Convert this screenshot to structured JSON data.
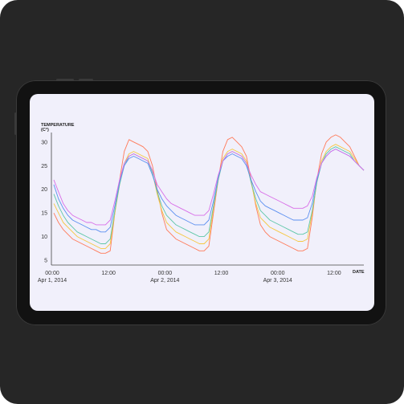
{
  "chart_data": {
    "type": "line",
    "ylabel": "TEMPERATURE",
    "ylabel_unit": "(C°)",
    "xlabel": "DATE",
    "ylim": [
      4,
      32
    ],
    "yticks": [
      5,
      10,
      15,
      20,
      25,
      30
    ],
    "xlim": [
      0,
      66
    ],
    "xticks": [
      {
        "x": 0,
        "line1": "00:00",
        "line2": "Apr 1, 2014"
      },
      {
        "x": 12,
        "line1": "12:00",
        "line2": ""
      },
      {
        "x": 24,
        "line1": "00:00",
        "line2": "Apr 2, 2014"
      },
      {
        "x": 36,
        "line1": "12:00",
        "line2": ""
      },
      {
        "x": 48,
        "line1": "00:00",
        "line2": "Apr 3, 2014"
      },
      {
        "x": 60,
        "line1": "12:00",
        "line2": ""
      }
    ],
    "legend": "none",
    "grid": false,
    "series": [
      {
        "color": "#ff7a59",
        "x": [
          0,
          1,
          2,
          3,
          4,
          5,
          6,
          7,
          8,
          9,
          10,
          11,
          12,
          13,
          14,
          15,
          16,
          17,
          18,
          19,
          20,
          21,
          22,
          23,
          24,
          25,
          26,
          27,
          28,
          29,
          30,
          31,
          32,
          33,
          34,
          35,
          36,
          37,
          38,
          39,
          40,
          41,
          42,
          43,
          44,
          45,
          46,
          47,
          48,
          49,
          50,
          51,
          52,
          53,
          54,
          55,
          56,
          57,
          58,
          59,
          60,
          61,
          62,
          63,
          64,
          65,
          66
        ],
        "y": [
          15,
          13,
          11.5,
          10.5,
          9.5,
          9,
          8.5,
          8,
          7.5,
          7,
          6.5,
          6.5,
          7,
          15,
          22,
          28,
          30.5,
          30,
          29.5,
          29,
          28,
          25,
          20,
          15,
          11.5,
          10.5,
          9.5,
          9,
          8.5,
          8,
          7.5,
          7,
          7,
          8,
          15,
          22,
          28,
          30.5,
          31,
          30,
          29,
          27,
          22,
          16.5,
          12.5,
          11,
          10,
          9.5,
          9,
          8.5,
          8,
          7.5,
          7,
          7,
          7.5,
          14,
          22,
          27.5,
          30,
          31,
          31.5,
          31,
          30,
          29,
          27,
          25,
          24
        ]
      },
      {
        "color": "#f5c842",
        "x": [
          0,
          1,
          2,
          3,
          4,
          5,
          6,
          7,
          8,
          9,
          10,
          11,
          12,
          13,
          14,
          15,
          16,
          17,
          18,
          19,
          20,
          21,
          22,
          23,
          24,
          25,
          26,
          27,
          28,
          29,
          30,
          31,
          32,
          33,
          34,
          35,
          36,
          37,
          38,
          39,
          40,
          41,
          42,
          43,
          44,
          45,
          46,
          47,
          48,
          49,
          50,
          51,
          52,
          53,
          54,
          55,
          56,
          57,
          58,
          59,
          60,
          61,
          62,
          63,
          64,
          65,
          66
        ],
        "y": [
          17,
          15,
          13,
          12,
          11,
          10,
          9.5,
          9,
          8.5,
          8,
          7.5,
          7.5,
          8.5,
          15,
          21,
          25.5,
          27.5,
          28,
          27.5,
          27,
          26.5,
          23.5,
          19,
          15.5,
          13,
          12,
          11,
          10.5,
          10,
          9.5,
          9,
          8.5,
          8.5,
          9.5,
          16,
          22,
          26.5,
          28,
          28.5,
          28,
          27.5,
          26,
          21.5,
          17,
          14,
          13,
          12,
          11.5,
          11,
          10.5,
          10,
          9.5,
          9,
          9,
          9.5,
          15,
          21.5,
          26,
          28,
          29,
          29.5,
          29,
          28.5,
          28,
          26.5,
          25,
          24
        ]
      },
      {
        "color": "#5fc7a8",
        "x": [
          0,
          1,
          2,
          3,
          4,
          5,
          6,
          7,
          8,
          9,
          10,
          11,
          12,
          13,
          14,
          15,
          16,
          17,
          18,
          19,
          20,
          21,
          22,
          23,
          24,
          25,
          26,
          27,
          28,
          29,
          30,
          31,
          32,
          33,
          34,
          35,
          36,
          37,
          38,
          39,
          40,
          41,
          42,
          43,
          44,
          45,
          46,
          47,
          48,
          49,
          50,
          51,
          52,
          53,
          54,
          55,
          56,
          57,
          58,
          59,
          60,
          61,
          62,
          63,
          64,
          65,
          66
        ],
        "y": [
          19,
          16.5,
          14.5,
          13,
          12,
          11,
          10.5,
          10,
          9.5,
          9,
          8.5,
          8.5,
          9.5,
          15.5,
          21,
          25,
          27,
          27.5,
          27,
          26.5,
          26,
          23.5,
          19.5,
          16.5,
          14.5,
          13.5,
          12.5,
          12,
          11.5,
          11,
          10.5,
          10,
          10,
          11,
          16.5,
          22,
          26,
          27.5,
          28,
          27.5,
          27,
          25.5,
          21.5,
          18,
          15.5,
          14.5,
          13.5,
          13,
          12.5,
          12,
          11.5,
          11,
          10.5,
          10.5,
          11,
          15.5,
          21.5,
          25.5,
          27.5,
          28.5,
          29,
          28.5,
          28,
          27.5,
          26,
          25,
          24
        ]
      },
      {
        "color": "#5b8ff0",
        "x": [
          0,
          1,
          2,
          3,
          4,
          5,
          6,
          7,
          8,
          9,
          10,
          11,
          12,
          13,
          14,
          15,
          16,
          17,
          18,
          19,
          20,
          21,
          22,
          23,
          24,
          25,
          26,
          27,
          28,
          29,
          30,
          31,
          32,
          33,
          34,
          35,
          36,
          37,
          38,
          39,
          40,
          41,
          42,
          43,
          44,
          45,
          46,
          47,
          48,
          49,
          50,
          51,
          52,
          53,
          54,
          55,
          56,
          57,
          58,
          59,
          60,
          61,
          62,
          63,
          64,
          65,
          66
        ],
        "y": [
          21,
          18,
          16,
          14.5,
          13.5,
          13,
          12.5,
          12,
          11.5,
          11.5,
          11,
          11,
          12,
          16.5,
          21.5,
          25,
          26.5,
          27,
          26.5,
          26,
          25.5,
          23,
          20,
          18,
          16.5,
          15.5,
          14.5,
          14,
          13.5,
          13,
          12.5,
          12.5,
          12.5,
          13.5,
          17.5,
          22.5,
          26,
          27,
          27.5,
          27,
          26.5,
          25,
          22,
          19.5,
          17.5,
          16.5,
          16,
          15.5,
          15,
          14.5,
          14,
          13.5,
          13.5,
          13.5,
          14,
          17,
          22,
          25.5,
          27,
          28,
          28.5,
          28,
          27.5,
          27,
          26,
          25,
          24
        ]
      },
      {
        "color": "#d86ee8",
        "x": [
          0,
          1,
          2,
          3,
          4,
          5,
          6,
          7,
          8,
          9,
          10,
          11,
          12,
          13,
          14,
          15,
          16,
          17,
          18,
          19,
          20,
          21,
          22,
          23,
          24,
          25,
          26,
          27,
          28,
          29,
          30,
          31,
          32,
          33,
          34,
          35,
          36,
          37,
          38,
          39,
          40,
          41,
          42,
          43,
          44,
          45,
          46,
          47,
          48,
          49,
          50,
          51,
          52,
          53,
          54,
          55,
          56,
          57,
          58,
          59,
          60,
          61,
          62,
          63,
          64,
          65,
          66
        ],
        "y": [
          22,
          19.5,
          17,
          15.5,
          14.5,
          14,
          13.5,
          13,
          13,
          12.5,
          12.5,
          12.5,
          13.5,
          17.5,
          22,
          25.5,
          27,
          27.5,
          27,
          26.5,
          26,
          24,
          21,
          19.5,
          18,
          17,
          16.5,
          16,
          15.5,
          15,
          14.5,
          14.5,
          14.5,
          15.5,
          19,
          23,
          26,
          27.5,
          28,
          27.5,
          27,
          25.5,
          23,
          21,
          19.5,
          19,
          18.5,
          18,
          17.5,
          17,
          16.5,
          16,
          16,
          16,
          16.5,
          18.5,
          22.5,
          25.5,
          27,
          28,
          28.5,
          28,
          27.5,
          27,
          26,
          25,
          24
        ]
      }
    ]
  }
}
